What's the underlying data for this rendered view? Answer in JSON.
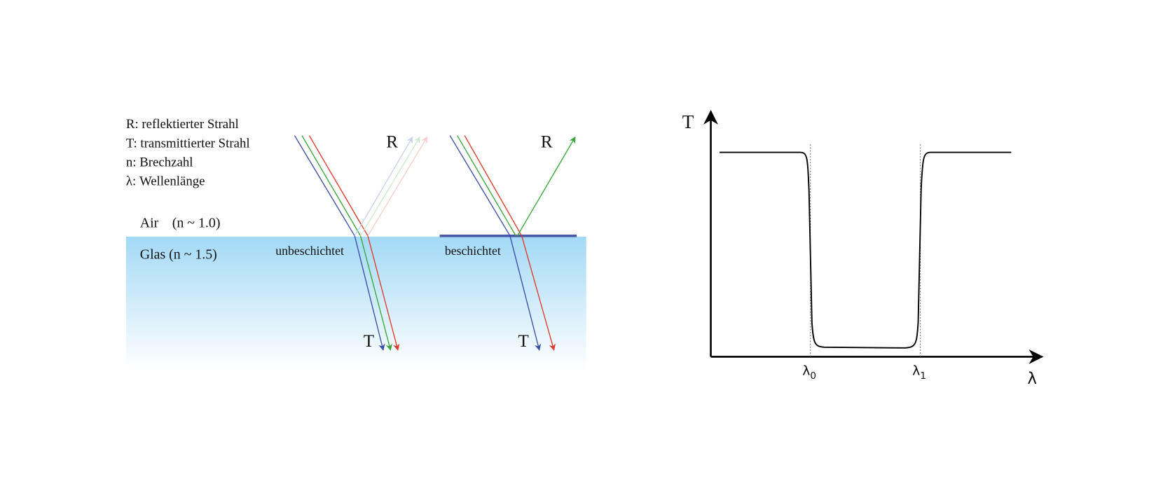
{
  "legend": [
    "R: reflektierter Strahl",
    "T: transmittierter Strahl",
    "n: Brechzahl",
    "λ: Wellenlänge"
  ],
  "media": {
    "air": "Air",
    "air_index": "(n ~ 1.0)",
    "glass": "Glas (n ~ 1.5)"
  },
  "panels": [
    {
      "label": "unbeschichtet",
      "reflected": "R",
      "transmitted": "T"
    },
    {
      "label": "beschichtet",
      "reflected": "R",
      "transmitted": "T"
    }
  ],
  "graph": {
    "y_axis": "T",
    "x_axis": "λ",
    "markers": [
      {
        "symbol": "λ",
        "subscript": "0"
      },
      {
        "symbol": "λ",
        "subscript": "1"
      }
    ]
  }
}
